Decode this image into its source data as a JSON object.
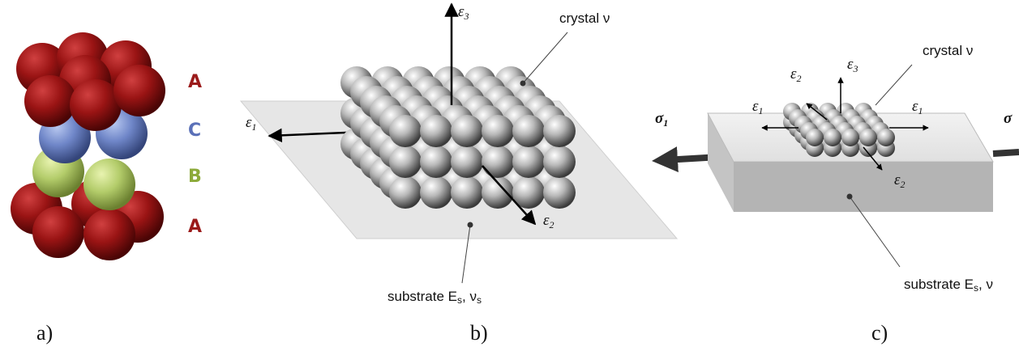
{
  "panel_a": {
    "label": "a)",
    "layers": [
      "A",
      "C",
      "B",
      "A"
    ]
  },
  "panel_b": {
    "label": "b)",
    "epsilon_3": {
      "symbol": "ε",
      "sub": "3"
    },
    "epsilon_1": {
      "symbol": "ε",
      "sub": "1"
    },
    "epsilon_2": {
      "symbol": "ε",
      "sub": "2"
    },
    "crystal": "crystal  ν",
    "substrate": {
      "text": "substrate E",
      "sub_e": "s",
      "mid": ", ν",
      "sub_nu": "s"
    }
  },
  "panel_c": {
    "label": "c)",
    "epsilon_2_top": {
      "symbol": "ε",
      "sub": "2"
    },
    "epsilon_3": {
      "symbol": "ε",
      "sub": "3"
    },
    "crystal": "crystal  ν",
    "epsilon_1_left": {
      "symbol": "ε",
      "sub": "1"
    },
    "epsilon_1_right": {
      "symbol": "ε",
      "sub": "1"
    },
    "sigma_left": {
      "symbol": "σ",
      "sub": "1"
    },
    "sigma_right": {
      "symbol": "σ"
    },
    "epsilon_2_bottom": {
      "symbol": "ε",
      "sub": "2"
    },
    "substrate": {
      "text": "substrate E",
      "sub_e": "s",
      "mid": ", ν"
    }
  }
}
